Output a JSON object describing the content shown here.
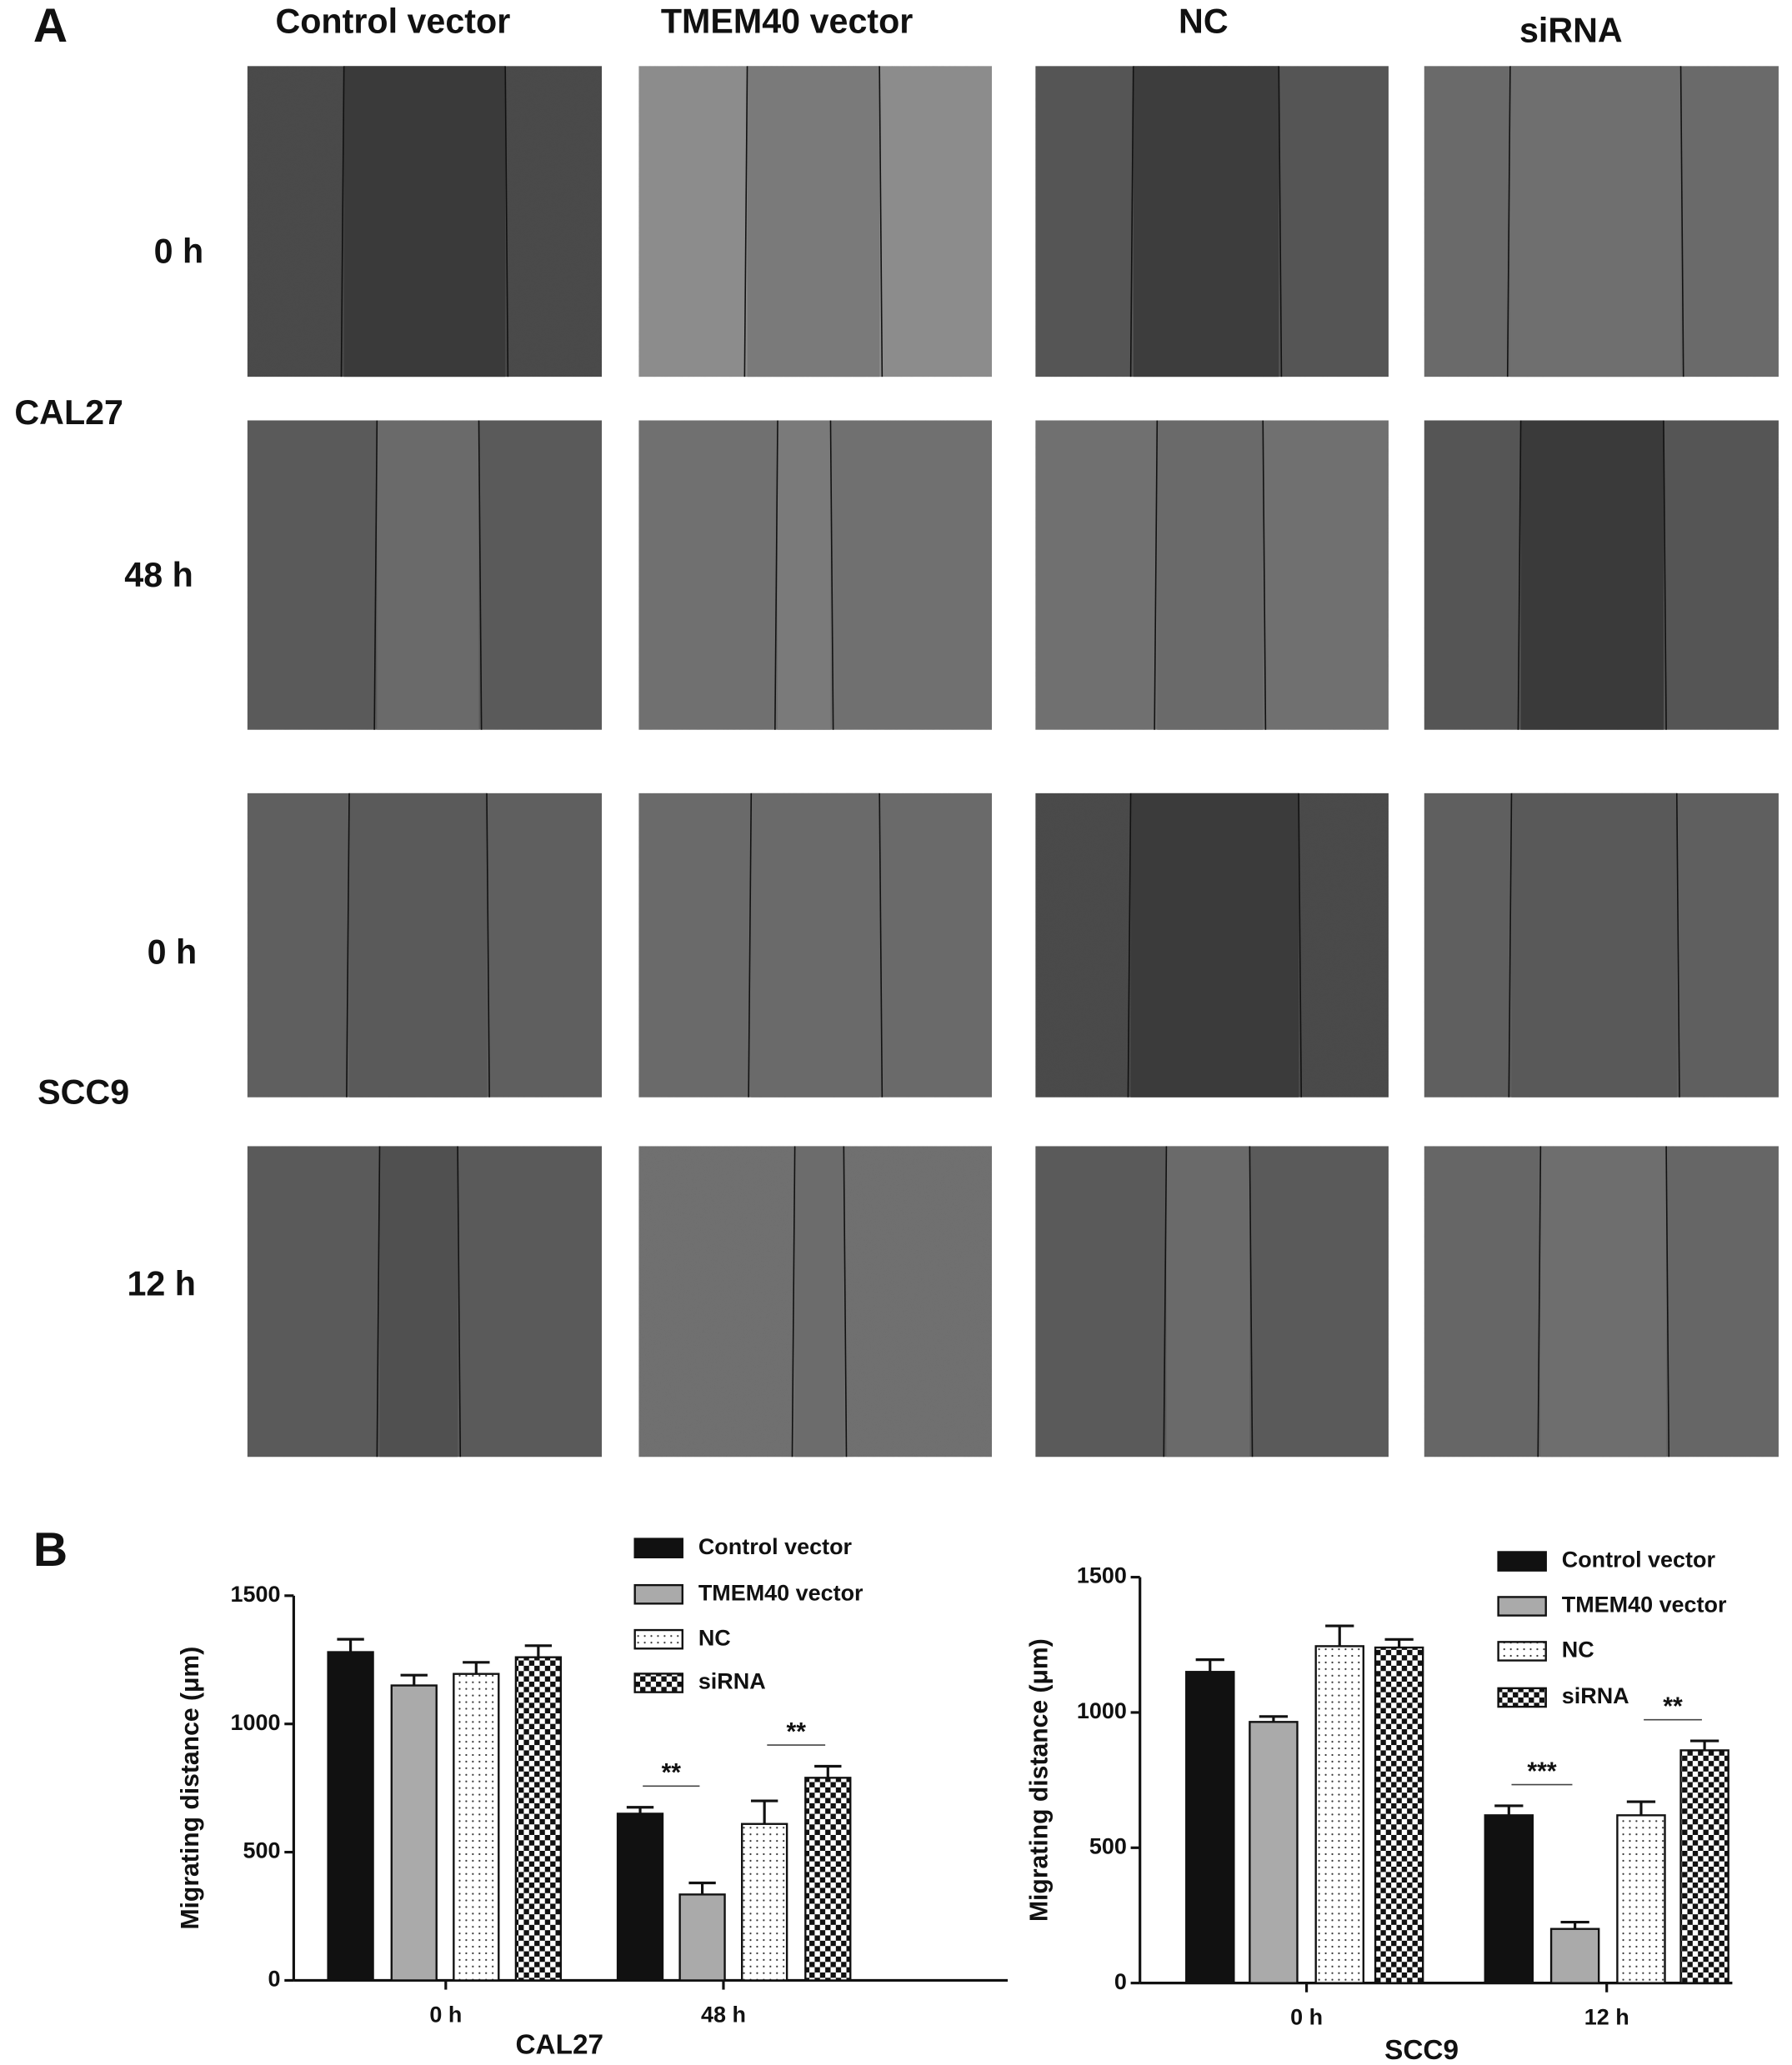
{
  "panel_a": {
    "label": "A",
    "columns": [
      "Control vector",
      "TMEM40 vector",
      "NC",
      "siRNA"
    ],
    "rows": [
      "0 h",
      "48 h",
      "0 h",
      "12 h"
    ],
    "cell_lines": [
      "CAL27",
      "SCC9"
    ]
  },
  "panel_b": {
    "label": "B"
  },
  "chart_data": [
    {
      "type": "bar",
      "xlabel": "CAL27",
      "ylabel": "Migrating distance (μm)",
      "categories": [
        "0 h",
        "48 h"
      ],
      "ylim": [
        0,
        1500
      ],
      "yticks": [
        0,
        500,
        1000,
        1500
      ],
      "series": [
        {
          "name": "Control vector",
          "color": "#111111",
          "pattern": "solid",
          "values": [
            1280,
            650
          ],
          "errors": [
            50,
            25
          ]
        },
        {
          "name": "TMEM40 vector",
          "color": "#aaaaaa",
          "pattern": "solid",
          "values": [
            1150,
            335
          ],
          "errors": [
            40,
            45
          ]
        },
        {
          "name": "NC",
          "color": "#ffffff",
          "pattern": "dots",
          "values": [
            1195,
            610
          ],
          "errors": [
            45,
            90
          ]
        },
        {
          "name": "siRNA",
          "color": "#111111",
          "pattern": "checker",
          "values": [
            1260,
            790
          ],
          "errors": [
            45,
            45
          ]
        }
      ],
      "annotations": [
        "**",
        "**"
      ]
    },
    {
      "type": "bar",
      "xlabel": "SCC9",
      "ylabel": "Migrating distance (μm)",
      "categories": [
        "0 h",
        "12 h"
      ],
      "ylim": [
        0,
        1500
      ],
      "yticks": [
        0,
        500,
        1000,
        1500
      ],
      "series": [
        {
          "name": "Control vector",
          "color": "#111111",
          "pattern": "solid",
          "values": [
            1150,
            620
          ],
          "errors": [
            45,
            35
          ]
        },
        {
          "name": "TMEM40 vector",
          "color": "#aaaaaa",
          "pattern": "solid",
          "values": [
            965,
            200
          ],
          "errors": [
            20,
            25
          ]
        },
        {
          "name": "NC",
          "color": "#ffffff",
          "pattern": "dots",
          "values": [
            1245,
            620
          ],
          "errors": [
            75,
            50
          ]
        },
        {
          "name": "siRNA",
          "color": "#111111",
          "pattern": "checker",
          "values": [
            1240,
            860
          ],
          "errors": [
            30,
            35
          ]
        }
      ],
      "annotations": [
        "***",
        "**"
      ]
    }
  ]
}
